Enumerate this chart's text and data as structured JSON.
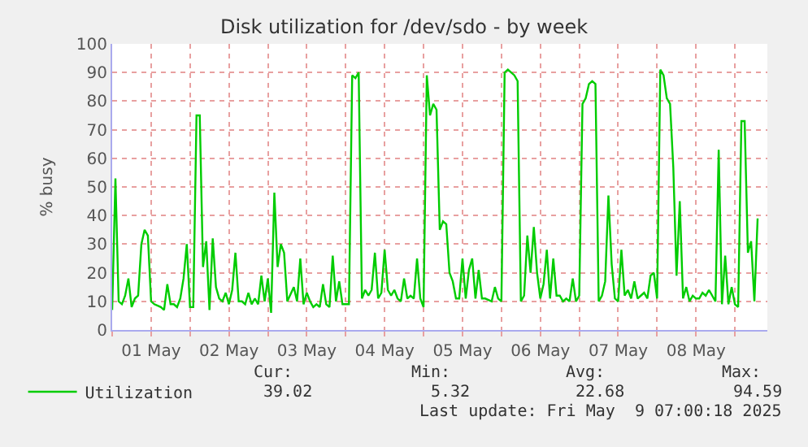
{
  "chart_data": {
    "type": "line",
    "title": "Disk utilization for /dev/sdo - by week",
    "ylabel": "% busy",
    "x": [
      "2025-05-01T00:00",
      "2025-05-01T01:00",
      "2025-05-01T02:00",
      "2025-05-01T03:00",
      "2025-05-01T04:00",
      "2025-05-01T05:00",
      "2025-05-01T06:00",
      "2025-05-01T07:00",
      "2025-05-01T08:00",
      "2025-05-01T09:00",
      "2025-05-01T10:00",
      "2025-05-01T11:00",
      "2025-05-01T12:00",
      "2025-05-01T13:00",
      "2025-05-01T15:00",
      "2025-05-01T16:00",
      "2025-05-01T17:00",
      "2025-05-01T18:00",
      "2025-05-01T19:00",
      "2025-05-01T20:00",
      "2025-05-01T21:00",
      "2025-05-01T22:00",
      "2025-05-01T23:00",
      "2025-05-02T00:00",
      "2025-05-02T01:00",
      "2025-05-02T02:00",
      "2025-05-02T03:00",
      "2025-05-02T04:00",
      "2025-05-02T05:00",
      "2025-05-02T06:00",
      "2025-05-02T07:00",
      "2025-05-02T08:00",
      "2025-05-02T09:00",
      "2025-05-02T10:00",
      "2025-05-02T11:00",
      "2025-05-02T12:00",
      "2025-05-02T13:00",
      "2025-05-02T14:00",
      "2025-05-02T15:00",
      "2025-05-02T16:00",
      "2025-05-02T17:00",
      "2025-05-02T18:00",
      "2025-05-02T19:00",
      "2025-05-02T20:00",
      "2025-05-02T21:00",
      "2025-05-02T22:00",
      "2025-05-02T23:00",
      "2025-05-03T00:00",
      "2025-05-03T01:00",
      "2025-05-03T02:00",
      "2025-05-03T03:00",
      "2025-05-03T04:00",
      "2025-05-03T05:00",
      "2025-05-03T06:00",
      "2025-05-03T08:00",
      "2025-05-03T09:00",
      "2025-05-03T10:00",
      "2025-05-03T11:00",
      "2025-05-03T12:00",
      "2025-05-03T13:00",
      "2025-05-03T14:00",
      "2025-05-03T15:00",
      "2025-05-03T16:00",
      "2025-05-03T17:00",
      "2025-05-03T18:00",
      "2025-05-03T19:00",
      "2025-05-03T20:00",
      "2025-05-03T21:00",
      "2025-05-03T22:00",
      "2025-05-03T23:00",
      "2025-05-04T00:00",
      "2025-05-04T01:00",
      "2025-05-04T02:00",
      "2025-05-04T03:00",
      "2025-05-04T04:00",
      "2025-05-04T05:00",
      "2025-05-04T06:00",
      "2025-05-04T07:00",
      "2025-05-04T08:00",
      "2025-05-04T09:00",
      "2025-05-04T10:00",
      "2025-05-04T11:00",
      "2025-05-04T12:00",
      "2025-05-04T13:00",
      "2025-05-04T14:00",
      "2025-05-04T15:00",
      "2025-05-04T16:00",
      "2025-05-04T17:00",
      "2025-05-04T18:00",
      "2025-05-04T19:00",
      "2025-05-04T20:00",
      "2025-05-04T21:00",
      "2025-05-04T22:00",
      "2025-05-04T23:00",
      "2025-05-05T00:00",
      "2025-05-05T01:00",
      "2025-05-05T02:00",
      "2025-05-05T03:00",
      "2025-05-05T04:00",
      "2025-05-05T05:00",
      "2025-05-05T06:00",
      "2025-05-05T07:00",
      "2025-05-05T08:00",
      "2025-05-05T09:00",
      "2025-05-05T10:00",
      "2025-05-05T11:00",
      "2025-05-05T12:00",
      "2025-05-05T13:00",
      "2025-05-05T14:00",
      "2025-05-05T15:00",
      "2025-05-05T16:00",
      "2025-05-05T17:00",
      "2025-05-05T18:00",
      "2025-05-05T19:00",
      "2025-05-05T21:00",
      "2025-05-05T22:00",
      "2025-05-05T23:00",
      "2025-05-06T00:00",
      "2025-05-06T01:00",
      "2025-05-06T02:00",
      "2025-05-06T03:00",
      "2025-05-06T04:00",
      "2025-05-06T05:00",
      "2025-05-06T06:00",
      "2025-05-06T07:00",
      "2025-05-06T08:00",
      "2025-05-06T09:00",
      "2025-05-06T10:00",
      "2025-05-06T11:00",
      "2025-05-06T12:00",
      "2025-05-06T13:00",
      "2025-05-06T14:00",
      "2025-05-06T15:00",
      "2025-05-06T16:00",
      "2025-05-06T17:00",
      "2025-05-06T18:00",
      "2025-05-06T19:00",
      "2025-05-06T20:00",
      "2025-05-06T21:00",
      "2025-05-06T22:00",
      "2025-05-06T23:00",
      "2025-05-07T00:00",
      "2025-05-07T01:00",
      "2025-05-07T02:00",
      "2025-05-07T03:00",
      "2025-05-07T04:00",
      "2025-05-07T05:00",
      "2025-05-07T06:00",
      "2025-05-07T07:00",
      "2025-05-07T08:00",
      "2025-05-07T09:00",
      "2025-05-07T10:00",
      "2025-05-07T11:00",
      "2025-05-07T12:00",
      "2025-05-07T13:00",
      "2025-05-07T14:00",
      "2025-05-07T15:00",
      "2025-05-07T16:00",
      "2025-05-07T17:00",
      "2025-05-07T18:00",
      "2025-05-07T19:00",
      "2025-05-07T20:00",
      "2025-05-07T21:00",
      "2025-05-07T22:00",
      "2025-05-07T23:00",
      "2025-05-08T00:00",
      "2025-05-08T01:00",
      "2025-05-08T02:00",
      "2025-05-08T03:00",
      "2025-05-08T04:00",
      "2025-05-08T05:00",
      "2025-05-08T06:00",
      "2025-05-08T07:00",
      "2025-05-08T08:00",
      "2025-05-08T09:00",
      "2025-05-08T10:00",
      "2025-05-08T11:00",
      "2025-05-08T12:00",
      "2025-05-08T13:00",
      "2025-05-08T14:00",
      "2025-05-08T15:00",
      "2025-05-08T16:00",
      "2025-05-08T17:00",
      "2025-05-08T18:00",
      "2025-05-08T19:00",
      "2025-05-08T20:00",
      "2025-05-08T21:00",
      "2025-05-08T22:00",
      "2025-05-08T23:00",
      "2025-05-09T00:00",
      "2025-05-09T01:00",
      "2025-05-09T02:00",
      "2025-05-09T03:00",
      "2025-05-09T04:00",
      "2025-05-09T05:00",
      "2025-05-09T06:00",
      "2025-05-09T07:00"
    ],
    "series": [
      {
        "name": "Utilization",
        "color": "#00cc00",
        "values": [
          7,
          53,
          10,
          9,
          12,
          18,
          8,
          11,
          12,
          30,
          35,
          33,
          10,
          9,
          8,
          7,
          16,
          9,
          9,
          8,
          11,
          18,
          30,
          8,
          8,
          75,
          75,
          22,
          31,
          7,
          32,
          15,
          11,
          10,
          13,
          9,
          14,
          27,
          10,
          10,
          9,
          13,
          9,
          11,
          9,
          19,
          10,
          18,
          6,
          48,
          22,
          30,
          27,
          10,
          15,
          10,
          25,
          9,
          13,
          10,
          8,
          9,
          8,
          16,
          9,
          8,
          26,
          10,
          17,
          9,
          9,
          9,
          89,
          88,
          90,
          11,
          14,
          12,
          14,
          27,
          11,
          13,
          28,
          14,
          12,
          14,
          11,
          10,
          18,
          11,
          12,
          11,
          25,
          11,
          8,
          89,
          75,
          79,
          77,
          35,
          38,
          37,
          20,
          17,
          11,
          11,
          25,
          11,
          21,
          25,
          11,
          21,
          11,
          11,
          10,
          15,
          11,
          10,
          90,
          91,
          90,
          89,
          87,
          10,
          12,
          33,
          20,
          36,
          20,
          11,
          16,
          28,
          11,
          25,
          12,
          12,
          10,
          11,
          10,
          18,
          10,
          12,
          79,
          81,
          86,
          87,
          86,
          10,
          12,
          17,
          47,
          23,
          11,
          10,
          28,
          12,
          14,
          11,
          17,
          11,
          12,
          13,
          11,
          19,
          20,
          11,
          91,
          89,
          81,
          79,
          57,
          19,
          45,
          11,
          15,
          10,
          12,
          11,
          11,
          13,
          12,
          14,
          12,
          10,
          63,
          9,
          26,
          9,
          15,
          9,
          8,
          73,
          73,
          27,
          31,
          10,
          39
        ]
      }
    ],
    "xlim": [
      "2025-05-01T00:00",
      "2025-05-09T10:00"
    ],
    "xticks": [
      {
        "value": "2025-05-01T00:00",
        "label": null
      },
      {
        "value": "2025-05-01T12:00",
        "label": "01 May"
      },
      {
        "value": "2025-05-02T00:00",
        "label": null
      },
      {
        "value": "2025-05-02T12:00",
        "label": "02 May"
      },
      {
        "value": "2025-05-03T00:00",
        "label": null
      },
      {
        "value": "2025-05-03T12:00",
        "label": "03 May"
      },
      {
        "value": "2025-05-04T00:00",
        "label": null
      },
      {
        "value": "2025-05-04T12:00",
        "label": "04 May"
      },
      {
        "value": "2025-05-05T00:00",
        "label": null
      },
      {
        "value": "2025-05-05T12:00",
        "label": "05 May"
      },
      {
        "value": "2025-05-06T00:00",
        "label": null
      },
      {
        "value": "2025-05-06T12:00",
        "label": "06 May"
      },
      {
        "value": "2025-05-07T00:00",
        "label": null
      },
      {
        "value": "2025-05-07T12:00",
        "label": "07 May"
      },
      {
        "value": "2025-05-08T00:00",
        "label": null
      },
      {
        "value": "2025-05-08T12:00",
        "label": "08 May"
      },
      {
        "value": "2025-05-09T00:00",
        "label": null
      }
    ],
    "ylim": [
      0,
      100
    ],
    "yticks": [
      0,
      10,
      20,
      30,
      40,
      50,
      60,
      70,
      80,
      90,
      100
    ],
    "grid": true,
    "legend": "bottom",
    "marker": "none",
    "line_style": "solid",
    "annotations": [
      "Cur:",
      "Min:",
      "Avg:",
      "Max:",
      "39.02",
      "5.32",
      "22.68",
      "94.59",
      "Last update: Fri May  9 07:00:18 2025"
    ]
  }
}
